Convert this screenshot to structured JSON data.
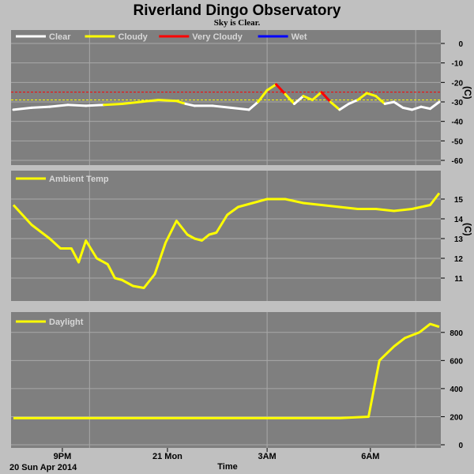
{
  "title": "Riverland Dingo Observatory",
  "subtitle": "Sky is Clear.",
  "date_label": "20 Sun Apr 2014",
  "x_axis_label": "Time",
  "x_ticks": [
    "9PM",
    "21 Mon",
    "3AM",
    "6AM"
  ],
  "colors": {
    "background": "#c0c0c0",
    "panel": "#7f7f7f",
    "grid": "#a8a8a8",
    "clear": "#ffffff",
    "cloudy": "#ffff00",
    "very_cloudy": "#ff0000",
    "wet": "#0000ff",
    "series": "#ffff00"
  },
  "chart_data": [
    {
      "type": "line",
      "name": "cloud",
      "unit": "(C)",
      "ylim": [
        -60,
        0
      ],
      "yticks": [
        0,
        -10,
        -20,
        -30,
        -40,
        -50,
        -60
      ],
      "grid": true,
      "legend": [
        {
          "label": "Clear",
          "color": "#ffffff"
        },
        {
          "label": "Cloudy",
          "color": "#ffff00"
        },
        {
          "label": "Very Cloudy",
          "color": "#ff0000"
        },
        {
          "label": "Wet",
          "color": "#0000ff"
        }
      ],
      "thresholds": [
        {
          "value": -25,
          "color": "#ff0000"
        },
        {
          "value": -29,
          "color": "#ffff00"
        }
      ],
      "x_hours": [
        0,
        0.5,
        1,
        1.5,
        2,
        2.5,
        3,
        3.5,
        4,
        4.5,
        4.75,
        5,
        5.5,
        6,
        6.5,
        6.75,
        7,
        7.25,
        7.5,
        7.75,
        8,
        8.25,
        8.5,
        8.75,
        9,
        9.25,
        9.5,
        9.75,
        10,
        10.25,
        10.5,
        10.75,
        11,
        11.25,
        11.5,
        11.75
      ],
      "values": [
        -34,
        -33,
        -32.5,
        -31.5,
        -32,
        -31.5,
        -31,
        -30,
        -29,
        -29.5,
        -31,
        -32,
        -32,
        -33,
        -34,
        -30,
        -24,
        -21,
        -26,
        -31,
        -27,
        -29,
        -25,
        -30,
        -34,
        -31,
        -29,
        -25.5,
        -27,
        -31,
        -30,
        -33,
        -34,
        -32.5,
        -33.5,
        -30
      ],
      "state": [
        "clear",
        "clear",
        "clear",
        "clear",
        "clear",
        "cloudy",
        "cloudy",
        "cloudy",
        "cloudy",
        "cloudy",
        "clear",
        "clear",
        "clear",
        "clear",
        "clear",
        "cloudy",
        "cloudy",
        "very_cloudy",
        "cloudy",
        "clear",
        "cloudy",
        "cloudy",
        "very_cloudy",
        "cloudy",
        "clear",
        "clear",
        "cloudy",
        "cloudy",
        "cloudy",
        "clear",
        "clear",
        "clear",
        "clear",
        "clear",
        "clear",
        "clear"
      ]
    },
    {
      "type": "line",
      "name": "ambient",
      "unit": "(C)",
      "ylim": [
        10,
        16
      ],
      "yticks": [
        15,
        14,
        13,
        12,
        11
      ],
      "grid": true,
      "legend": [
        {
          "label": "Ambient Temp",
          "color": "#ffff00"
        }
      ],
      "x_hours": [
        0,
        0.5,
        1,
        1.3,
        1.6,
        1.8,
        2.0,
        2.3,
        2.6,
        2.8,
        3.0,
        3.3,
        3.6,
        3.9,
        4.2,
        4.5,
        4.8,
        5.0,
        5.2,
        5.4,
        5.6,
        5.9,
        6.2,
        6.6,
        7.0,
        7.5,
        8.0,
        8.5,
        9.0,
        9.5,
        10.0,
        10.5,
        11.0,
        11.5,
        11.75
      ],
      "values": [
        14.7,
        13.7,
        13.0,
        12.5,
        12.5,
        11.8,
        12.9,
        12.0,
        11.7,
        11.0,
        10.9,
        10.6,
        10.5,
        11.2,
        12.8,
        13.9,
        13.2,
        13.0,
        12.9,
        13.2,
        13.3,
        14.2,
        14.6,
        14.8,
        15.0,
        15.0,
        14.8,
        14.7,
        14.6,
        14.5,
        14.5,
        14.4,
        14.5,
        14.7,
        15.3
      ]
    },
    {
      "type": "line",
      "name": "daylight",
      "unit": "",
      "ylim": [
        0,
        900
      ],
      "yticks": [
        800,
        600,
        400,
        200,
        0
      ],
      "grid": true,
      "legend": [
        {
          "label": "Daylight",
          "color": "#ffff00"
        }
      ],
      "x_hours": [
        0,
        1,
        2,
        3,
        4,
        5,
        6,
        7,
        8,
        9,
        9.8,
        10.1,
        10.3,
        10.5,
        10.8,
        11.2,
        11.5,
        11.75
      ],
      "values": [
        190,
        190,
        190,
        190,
        190,
        190,
        190,
        190,
        190,
        190,
        200,
        600,
        650,
        700,
        760,
        800,
        860,
        840
      ]
    }
  ]
}
